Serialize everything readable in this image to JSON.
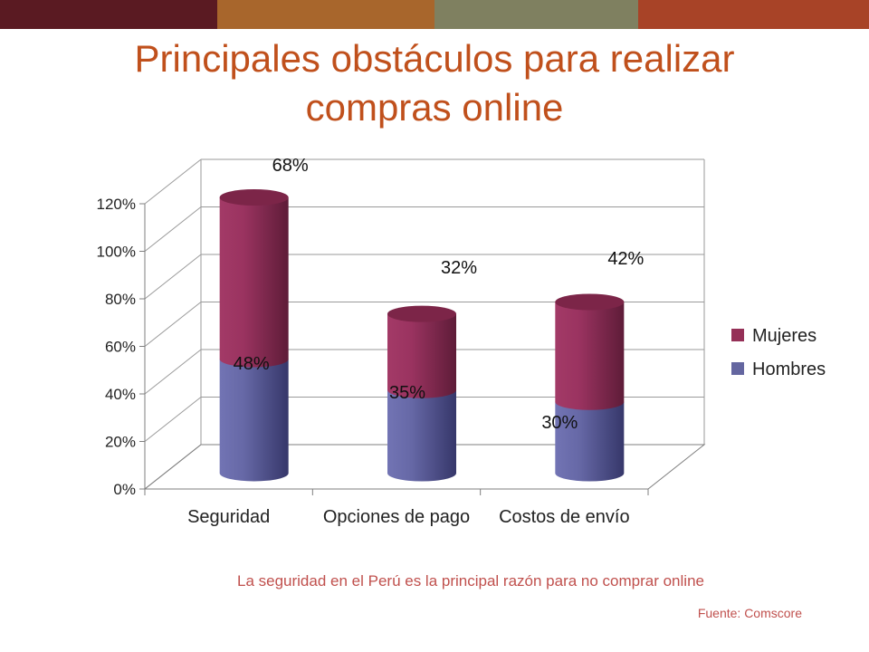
{
  "colors": {
    "bar_top": [
      "#5a1a22",
      "#a8662c",
      "#7f8060",
      "#a84327"
    ],
    "title": "#c0501c",
    "caption": "#c0504d",
    "mujeres": "#953057",
    "hombres": "#6466a0"
  },
  "title": {
    "line1": "Principales obstáculos para realizar",
    "line2": "compras online"
  },
  "caption": "La seguridad en el Perú es la principal razón para no comprar online",
  "source": "Fuente: Comscore",
  "chart_data": {
    "type": "bar",
    "stacked": true,
    "three_d": true,
    "categories": [
      "Seguridad",
      "Opciones de pago",
      "Costos de envío"
    ],
    "series": [
      {
        "name": "Hombres",
        "values": [
          48,
          35,
          30
        ],
        "labels": [
          "48%",
          "35%",
          "30%"
        ]
      },
      {
        "name": "Mujeres",
        "values": [
          68,
          32,
          42
        ],
        "labels": [
          "68%",
          "32%",
          "42%"
        ]
      }
    ],
    "ylim": [
      0,
      120
    ],
    "yticks": [
      0,
      20,
      40,
      60,
      80,
      100,
      120
    ],
    "ytick_labels": [
      "0%",
      "20%",
      "40%",
      "60%",
      "80%",
      "100%",
      "120%"
    ],
    "grid": true,
    "legend": "right",
    "title": "",
    "xlabel": "",
    "ylabel": ""
  }
}
